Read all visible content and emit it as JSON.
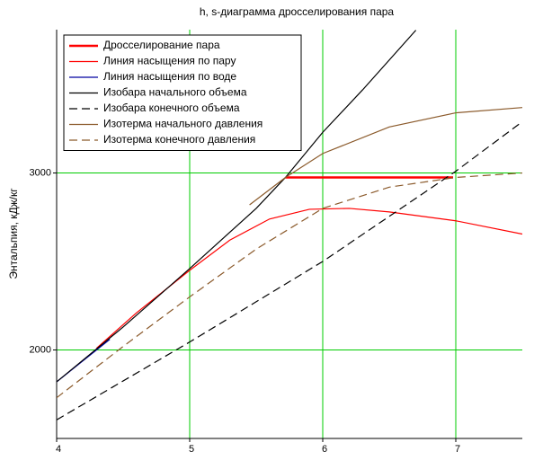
{
  "chart_data": {
    "type": "line",
    "title": "h, s-диаграмма дросселирования пара",
    "ylabel": "Энтальпия, кДж/кг",
    "xlim": [
      4,
      7.5
    ],
    "xticks": [
      4,
      5,
      6,
      7
    ],
    "ylim": [
      1500,
      3810
    ],
    "yticks": [
      2000,
      3000
    ],
    "grid": true,
    "grid_color": "#00cc00",
    "legend": "upper left",
    "series": [
      {
        "name": "Дросселирование пара",
        "color": "#ff0000",
        "style": "thick",
        "x": [
          5.72,
          6.98
        ],
        "values": [
          2975,
          2975
        ]
      },
      {
        "name": "Линия насыщения по пару",
        "color": "#ff0000",
        "style": "solid",
        "x": [
          4.3,
          4.6,
          5.0,
          5.3,
          5.6,
          5.9,
          6.2,
          6.5,
          7.0,
          7.5
        ],
        "values": [
          2010,
          2210,
          2450,
          2620,
          2740,
          2795,
          2800,
          2780,
          2730,
          2655
        ]
      },
      {
        "name": "Линия насыщения по воде",
        "color": "#0000a0",
        "style": "solid",
        "x": [
          4.0,
          4.2,
          4.4
        ],
        "values": [
          1820,
          1940,
          2060
        ]
      },
      {
        "name": "Изобара начального объема",
        "color": "#000000",
        "style": "solid",
        "x": [
          4.0,
          4.5,
          5.0,
          5.5,
          5.72,
          6.0,
          6.3,
          6.7
        ],
        "values": [
          1820,
          2130,
          2460,
          2800,
          2975,
          3230,
          3470,
          3807
        ]
      },
      {
        "name": "Изобара конечного объема",
        "color": "#000000",
        "style": "dashed",
        "x": [
          4.0,
          5.0,
          6.0,
          7.0,
          7.5
        ],
        "values": [
          1605,
          2045,
          2500,
          3010,
          3290
        ]
      },
      {
        "name": "Изотерма начального давления",
        "color": "#8b5a2b",
        "style": "solid",
        "x": [
          5.45,
          5.72,
          6.0,
          6.5,
          7.0,
          7.5
        ],
        "values": [
          2820,
          2975,
          3110,
          3260,
          3340,
          3370
        ]
      },
      {
        "name": "Изотерма конечного давления",
        "color": "#8b5a2b",
        "style": "dashed",
        "x": [
          4.0,
          4.5,
          5.0,
          5.5,
          6.0,
          6.5,
          7.0,
          7.5
        ],
        "values": [
          1730,
          2020,
          2300,
          2570,
          2800,
          2920,
          2975,
          3000
        ]
      }
    ]
  }
}
